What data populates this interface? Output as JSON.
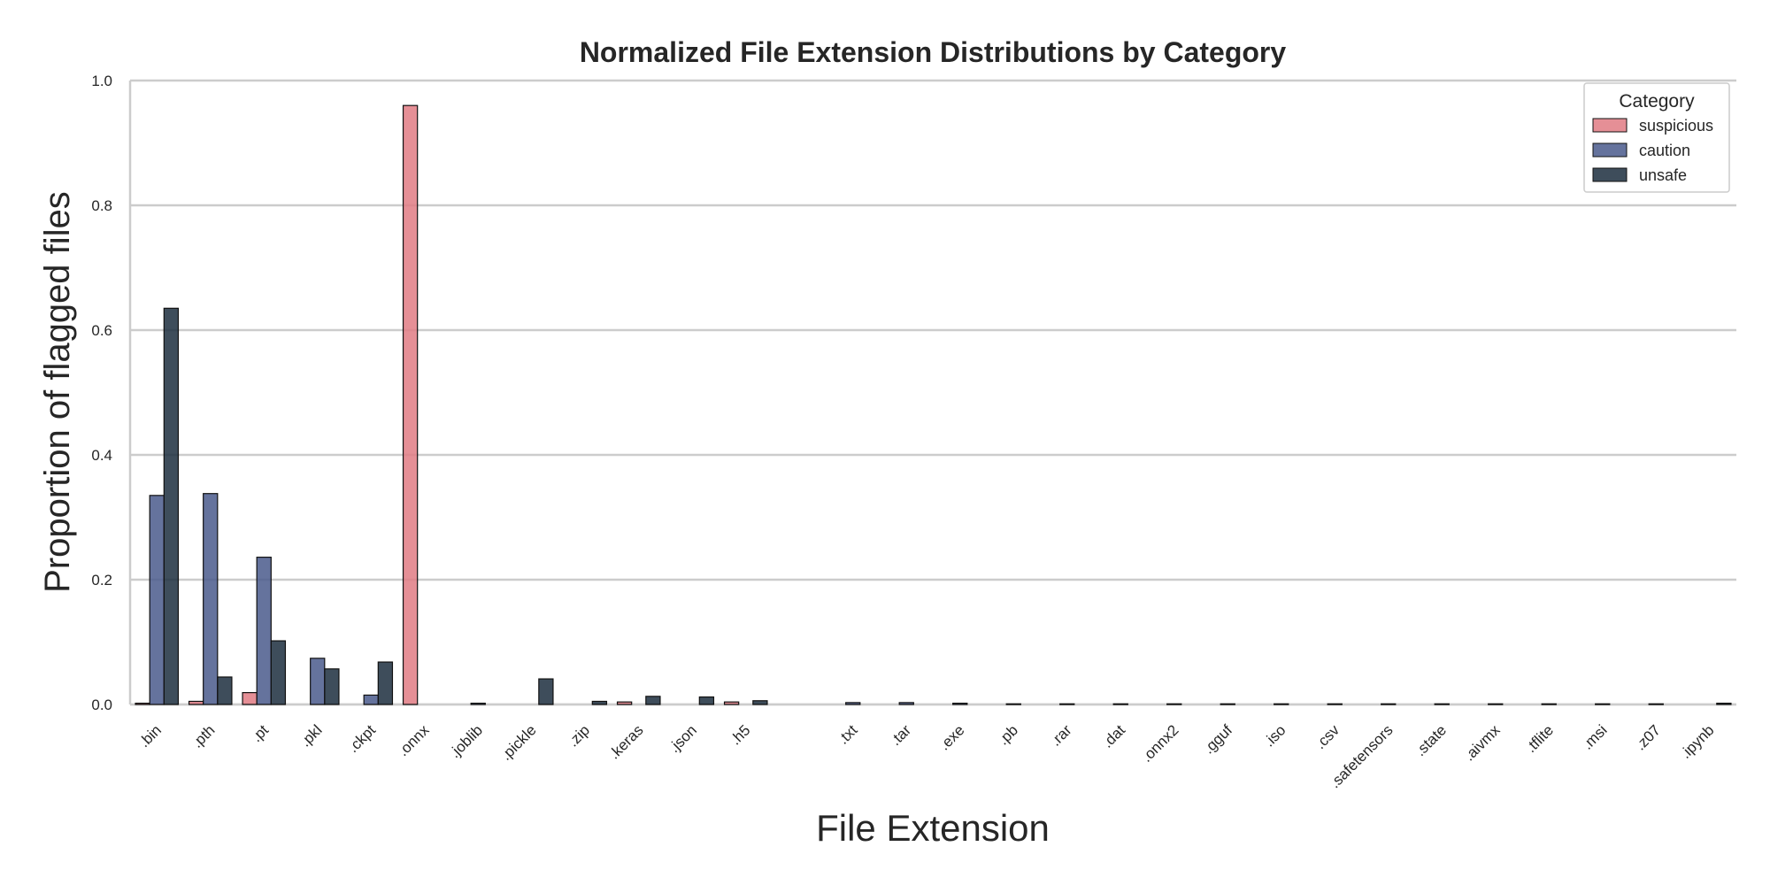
{
  "chart_data": {
    "type": "bar",
    "title": "Normalized File Extension Distributions by Category",
    "xlabel": "File Extension",
    "ylabel": "Proportion of flagged files",
    "ylim": [
      0,
      1.0
    ],
    "yticks": [
      "0.0",
      "0.2",
      "0.4",
      "0.6",
      "0.8",
      "1.0"
    ],
    "grid": "horizontal",
    "legend": {
      "title": "Category",
      "placement": "top-right"
    },
    "categories": [
      ".bin",
      ".pth",
      ".pt",
      ".pkl",
      ".ckpt",
      ".onnx",
      ".joblib",
      ".pickle",
      ".zip",
      ".keras",
      ".json",
      ".h5",
      "",
      ".txt",
      ".tar",
      ".exe",
      ".pb",
      ".rar",
      ".dat",
      ".onnx2",
      ".gguf",
      ".iso",
      ".csv",
      ".safetensors",
      ".state",
      ".aivmx",
      ".tflite",
      ".msi",
      ".z07",
      ".ipynb"
    ],
    "series": [
      {
        "name": "suspicious",
        "color": "#e07b84",
        "values": [
          0.002,
          0.005,
          0.019,
          0,
          0,
          0.96,
          0,
          0,
          0,
          0.004,
          0,
          0.004,
          0,
          0,
          0,
          0,
          0,
          0,
          0,
          0,
          0,
          0,
          0,
          0,
          0,
          0,
          0,
          0,
          0,
          0
        ]
      },
      {
        "name": "caution",
        "color": "#4a5a8c",
        "values": [
          0.335,
          0.338,
          0.236,
          0.074,
          0.015,
          0,
          0.002,
          0,
          0,
          0,
          0,
          0,
          0,
          0.003,
          0.003,
          0.002,
          0.001,
          0.001,
          0.001,
          0.001,
          0.001,
          0.001,
          0.001,
          0.001,
          0.001,
          0.001,
          0.001,
          0.001,
          0.001,
          0
        ]
      },
      {
        "name": "unsafe",
        "color": "#1c2e3e",
        "values": [
          0.635,
          0.044,
          0.102,
          0.057,
          0.068,
          0,
          0,
          0.041,
          0.005,
          0.013,
          0.012,
          0.006,
          0,
          0,
          0,
          0,
          0,
          0,
          0,
          0,
          0,
          0,
          0,
          0,
          0,
          0,
          0,
          0,
          0,
          0.002
        ]
      }
    ]
  }
}
